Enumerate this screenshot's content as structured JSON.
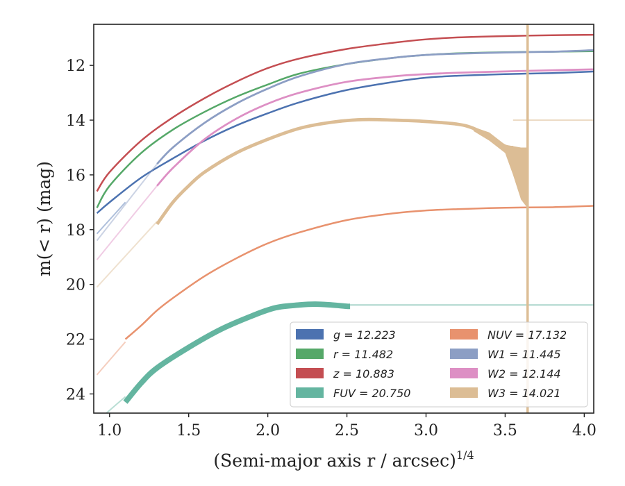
{
  "chart_data": {
    "type": "line",
    "title": "",
    "xlabel": "(Semi-major axis r / arcsec)",
    "xlabel_superscript": "1/4",
    "ylabel": "m(< r) (mag)",
    "xlim": [
      0.9,
      4.06
    ],
    "ylim": [
      24.7,
      10.5
    ],
    "y_inverted": true,
    "grid": false,
    "legend_position": "bottom-right",
    "x_ticks": [
      "1.0",
      "1.5",
      "2.0",
      "2.5",
      "3.0",
      "3.5",
      "4.0"
    ],
    "y_ticks": [
      "12",
      "14",
      "16",
      "18",
      "20",
      "22",
      "24"
    ],
    "series": [
      {
        "name": "g = 12.223",
        "color": "#4c72b0",
        "band_width": 0.05,
        "faint": [
          [
            0.92,
            18.15
          ],
          [
            1.1,
            17.0
          ]
        ],
        "x": [
          0.92,
          1.0,
          1.2,
          1.4,
          1.6,
          1.8,
          2.0,
          2.2,
          2.5,
          2.8,
          3.0,
          3.2,
          3.5,
          3.8,
          4.06
        ],
        "y": [
          17.4,
          17.0,
          16.1,
          15.4,
          14.75,
          14.2,
          13.75,
          13.35,
          12.9,
          12.6,
          12.45,
          12.38,
          12.32,
          12.28,
          12.223
        ]
      },
      {
        "name": "r = 11.482",
        "color": "#55a868",
        "band_width": 0.05,
        "faint": [],
        "x": [
          0.92,
          1.0,
          1.2,
          1.4,
          1.6,
          1.8,
          2.0,
          2.2,
          2.5,
          2.8,
          3.0,
          3.2,
          3.5,
          3.8,
          4.06
        ],
        "y": [
          17.2,
          16.4,
          15.2,
          14.35,
          13.7,
          13.15,
          12.7,
          12.3,
          11.95,
          11.72,
          11.62,
          11.56,
          11.52,
          11.5,
          11.482
        ]
      },
      {
        "name": "z = 10.883",
        "color": "#c44e52",
        "band_width": 0.06,
        "faint": [],
        "x": [
          0.92,
          1.0,
          1.2,
          1.4,
          1.6,
          1.8,
          2.0,
          2.2,
          2.5,
          2.8,
          3.0,
          3.2,
          3.5,
          3.8,
          4.06
        ],
        "y": [
          16.6,
          15.9,
          14.75,
          13.9,
          13.2,
          12.6,
          12.1,
          11.75,
          11.4,
          11.17,
          11.05,
          10.98,
          10.93,
          10.9,
          10.883
        ]
      },
      {
        "name": "FUV = 20.750",
        "color": "#64b5a0",
        "band_width": 0.2,
        "faint": [
          [
            0.98,
            24.7
          ],
          [
            1.1,
            24.1
          ]
        ],
        "x": [
          1.1,
          1.2,
          1.3,
          1.5,
          1.7,
          1.9,
          2.05,
          2.2,
          2.3,
          2.4,
          2.5,
          2.52
        ],
        "y": [
          24.3,
          23.6,
          23.05,
          22.3,
          21.65,
          21.15,
          20.85,
          20.75,
          20.72,
          20.75,
          20.8,
          20.8
        ],
        "faint_tail": [
          [
            2.52,
            20.75
          ],
          [
            4.06,
            20.75
          ]
        ]
      },
      {
        "name": "NUV = 17.132",
        "color": "#e8926e",
        "band_width": 0.05,
        "faint": [
          [
            0.92,
            23.3
          ],
          [
            1.1,
            22.1
          ]
        ],
        "x": [
          1.1,
          1.2,
          1.3,
          1.4,
          1.6,
          1.8,
          2.0,
          2.2,
          2.5,
          2.8,
          3.0,
          3.2,
          3.5,
          3.8,
          4.06
        ],
        "y": [
          22.0,
          21.5,
          20.95,
          20.5,
          19.7,
          19.05,
          18.5,
          18.1,
          17.65,
          17.4,
          17.3,
          17.25,
          17.2,
          17.18,
          17.132
        ]
      },
      {
        "name": "W1 = 11.445",
        "color": "#8c9ec4",
        "band_width": 0.07,
        "faint": [
          [
            0.92,
            18.4
          ],
          [
            1.3,
            15.6
          ]
        ],
        "x": [
          1.3,
          1.4,
          1.6,
          1.8,
          2.0,
          2.2,
          2.5,
          2.8,
          3.0,
          3.2,
          3.5,
          3.8,
          4.06
        ],
        "y": [
          15.6,
          15.0,
          14.1,
          13.4,
          12.85,
          12.4,
          11.95,
          11.72,
          11.62,
          11.57,
          11.53,
          11.5,
          11.445
        ]
      },
      {
        "name": "W2 = 12.144",
        "color": "#dd8fc4",
        "band_width": 0.07,
        "faint": [
          [
            0.92,
            19.1
          ],
          [
            1.3,
            16.4
          ]
        ],
        "x": [
          1.3,
          1.4,
          1.6,
          1.8,
          2.0,
          2.2,
          2.5,
          2.8,
          3.0,
          3.2,
          3.5,
          3.8,
          4.06
        ],
        "y": [
          16.4,
          15.75,
          14.7,
          13.95,
          13.4,
          13.0,
          12.6,
          12.4,
          12.32,
          12.27,
          12.22,
          12.18,
          12.144
        ]
      },
      {
        "name": "W3 = 14.021",
        "color": "#dcbd95",
        "band_width": 0.12,
        "faint": [
          [
            0.92,
            20.1
          ],
          [
            1.3,
            17.7
          ]
        ],
        "x": [
          1.3,
          1.4,
          1.5,
          1.6,
          1.8,
          2.0,
          2.2,
          2.4,
          2.6,
          2.8,
          3.0,
          3.2,
          3.3,
          3.4,
          3.5,
          3.55
        ],
        "y": [
          17.8,
          17.0,
          16.4,
          15.9,
          15.2,
          14.7,
          14.3,
          14.08,
          13.98,
          14.0,
          14.05,
          14.15,
          14.3,
          14.6,
          14.95,
          15.0
        ],
        "faint_tail": [
          [
            3.55,
            14.0
          ],
          [
            4.06,
            14.0
          ]
        ]
      }
    ]
  }
}
